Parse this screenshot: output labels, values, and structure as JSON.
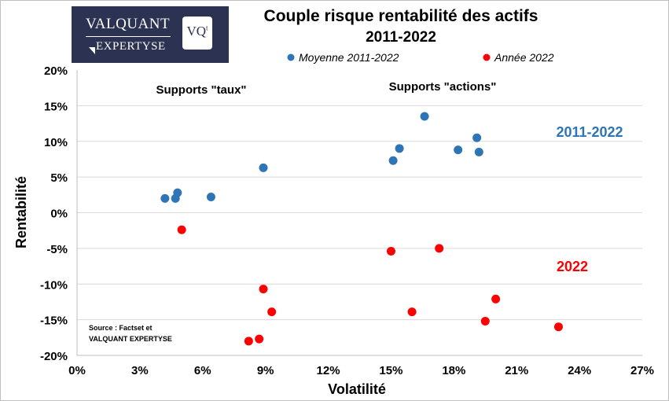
{
  "logo": {
    "line1": "VALQUANT",
    "line2": "EXPERTYSE",
    "badge": "VQ",
    "badge_sup": "t"
  },
  "chart_data": {
    "type": "scatter",
    "title": "Couple risque rentabilité des actifs",
    "subtitle": "2011-2022",
    "xlabel": "Volatilité",
    "ylabel": "Rentabilité",
    "xlim": [
      0,
      27
    ],
    "ylim": [
      -20,
      20
    ],
    "x_ticks": [
      "0%",
      "3%",
      "6%",
      "9%",
      "12%",
      "15%",
      "18%",
      "21%",
      "24%",
      "27%"
    ],
    "y_ticks": [
      "20%",
      "15%",
      "10%",
      "5%",
      "0%",
      "-5%",
      "-10%",
      "-15%",
      "-20%"
    ],
    "grid": "horizontal",
    "legend_position": "top",
    "series": [
      {
        "name": "Moyenne 2011-2022",
        "color": "#2e75b6",
        "points": [
          {
            "x": 4.2,
            "y": 2.0
          },
          {
            "x": 4.7,
            "y": 2.0
          },
          {
            "x": 4.8,
            "y": 2.8
          },
          {
            "x": 6.4,
            "y": 2.2
          },
          {
            "x": 8.9,
            "y": 6.3
          },
          {
            "x": 15.1,
            "y": 7.3
          },
          {
            "x": 15.4,
            "y": 9.0
          },
          {
            "x": 16.6,
            "y": 13.5
          },
          {
            "x": 18.2,
            "y": 8.8
          },
          {
            "x": 19.1,
            "y": 10.5
          },
          {
            "x": 19.2,
            "y": 8.5
          }
        ]
      },
      {
        "name": "Année 2022",
        "color": "#ff0000",
        "points": [
          {
            "x": 5.0,
            "y": -2.4
          },
          {
            "x": 8.9,
            "y": -10.7
          },
          {
            "x": 9.3,
            "y": -13.9
          },
          {
            "x": 8.7,
            "y": -17.7
          },
          {
            "x": 8.2,
            "y": -18.0
          },
          {
            "x": 15.0,
            "y": -5.4
          },
          {
            "x": 16.0,
            "y": -13.9
          },
          {
            "x": 17.3,
            "y": -5.0
          },
          {
            "x": 19.5,
            "y": -15.2
          },
          {
            "x": 20.0,
            "y": -12.1
          },
          {
            "x": 23.0,
            "y": -16.0
          }
        ]
      }
    ],
    "annotations": {
      "taux": "Supports \"taux\"",
      "actions": "Supports \"actions\"",
      "period": "2011-2022",
      "year": "2022",
      "period_color": "#2e75b6",
      "year_color": "#ff0000",
      "source_line1": "Source : Factset et",
      "source_line2": "VALQUANT  EXPERTYSE"
    }
  }
}
